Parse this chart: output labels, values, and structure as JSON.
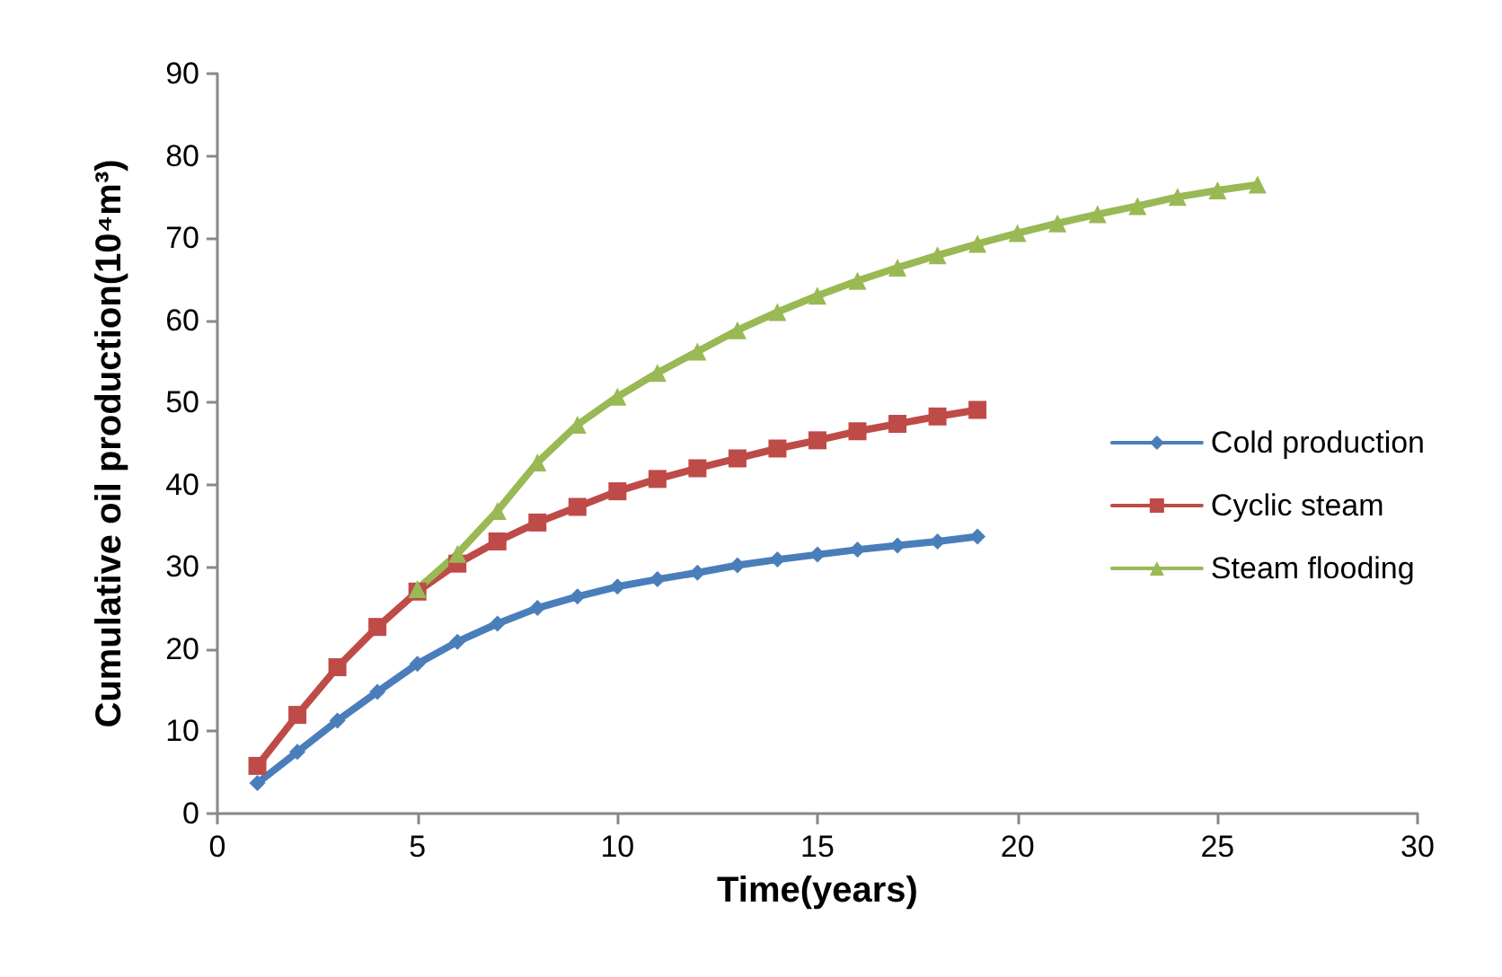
{
  "chart_data": {
    "type": "line",
    "xlabel": "Time(years)",
    "ylabel": "Cumulative oil production(10⁴m³)",
    "xlim": [
      0,
      30
    ],
    "xticks": [
      0,
      5,
      10,
      15,
      20,
      25,
      30
    ],
    "ylim": [
      0,
      90
    ],
    "yticks": [
      0,
      10,
      20,
      30,
      40,
      50,
      60,
      70,
      80,
      90
    ],
    "grid": false,
    "legend": "right",
    "line_style": "solid",
    "series": [
      {
        "name": "Cold production",
        "color": "#4a7ebb",
        "marker": "diamond",
        "x": [
          1,
          2,
          3,
          4,
          5,
          6,
          7,
          8,
          9,
          10,
          11,
          12,
          13,
          14,
          15,
          16,
          17,
          18,
          19
        ],
        "values": [
          3.7,
          7.5,
          11.3,
          14.8,
          18.2,
          20.9,
          23.1,
          25.0,
          26.4,
          27.6,
          28.5,
          29.3,
          30.2,
          30.9,
          31.5,
          32.1,
          32.6,
          33.1,
          33.7
        ]
      },
      {
        "name": "Cyclic steam",
        "color": "#be4b48",
        "marker": "square",
        "x": [
          1,
          2,
          3,
          4,
          5,
          6,
          7,
          8,
          9,
          10,
          11,
          12,
          13,
          14,
          15,
          16,
          17,
          18,
          19
        ],
        "values": [
          5.8,
          12.0,
          17.8,
          22.7,
          27.0,
          30.4,
          33.1,
          35.4,
          37.3,
          39.2,
          40.7,
          42.0,
          43.2,
          44.4,
          45.4,
          46.5,
          47.4,
          48.3,
          49.1
        ]
      },
      {
        "name": "Steam flooding",
        "color": "#98b954",
        "marker": "triangle",
        "x": [
          5,
          6,
          7,
          8,
          9,
          10,
          11,
          12,
          13,
          14,
          15,
          16,
          17,
          18,
          19,
          20,
          21,
          22,
          23,
          24,
          25,
          26
        ],
        "values": [
          27.3,
          31.6,
          36.8,
          42.7,
          47.3,
          50.7,
          53.6,
          56.2,
          58.8,
          61.0,
          63.0,
          64.8,
          66.4,
          67.9,
          69.3,
          70.6,
          71.8,
          72.9,
          73.9,
          75.0,
          75.8,
          76.5
        ]
      }
    ]
  }
}
